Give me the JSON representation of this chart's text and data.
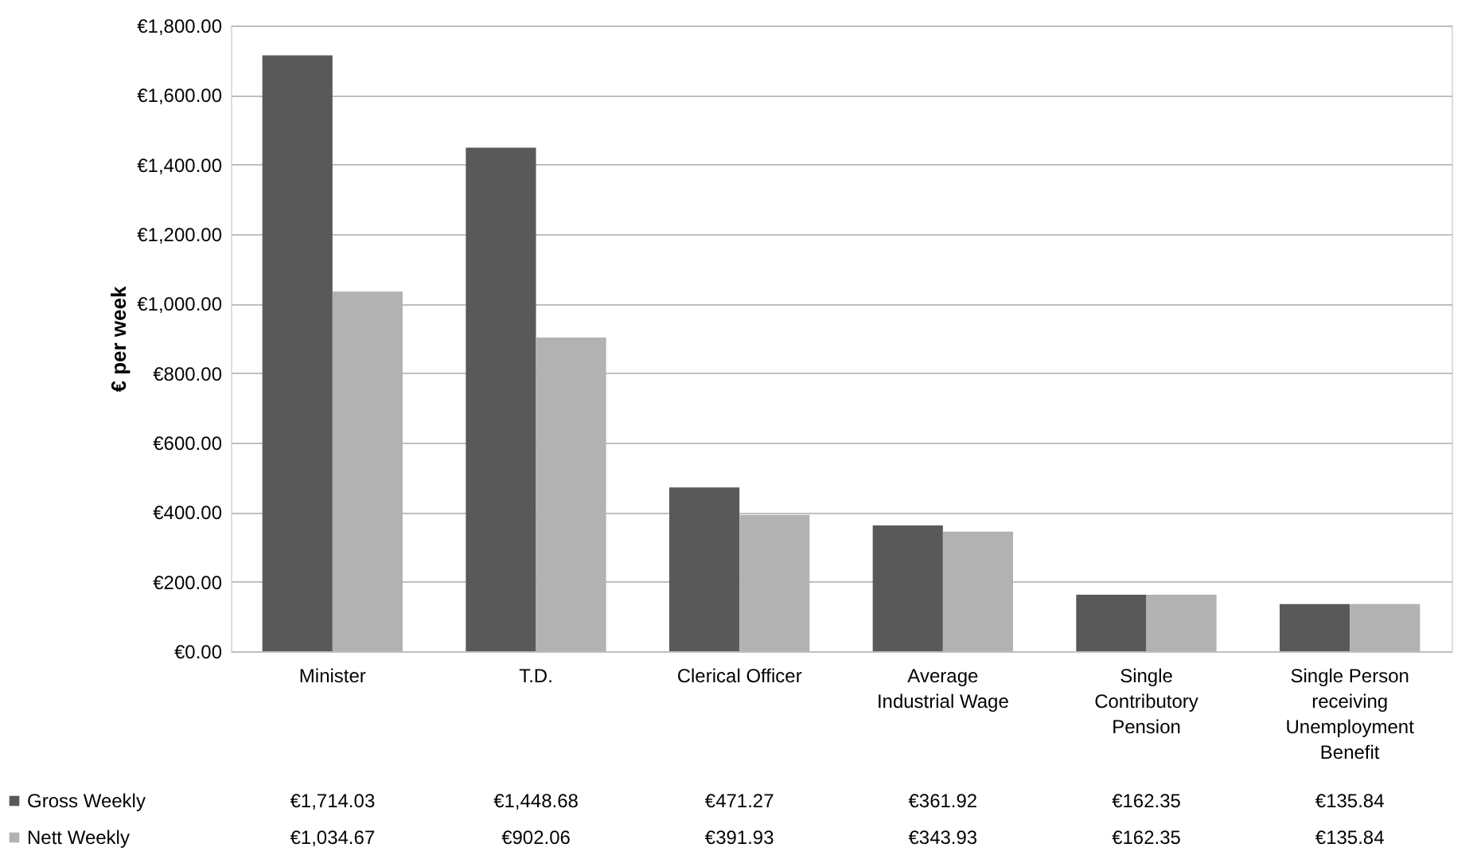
{
  "chart_data": {
    "type": "bar",
    "ylabel": "€ per week",
    "categories": [
      "Minister",
      "T.D.",
      "Clerical Officer",
      "Average Industrial Wage",
      "Single Contributory Pension",
      "Single Person receiving Unemployment Benefit"
    ],
    "series": [
      {
        "name": "Gross Weekly",
        "color": "#595959",
        "values": [
          1714.03,
          1448.68,
          471.27,
          361.92,
          162.35,
          135.84
        ],
        "value_labels": [
          "€1,714.03",
          "€1,448.68",
          "€471.27",
          "€361.92",
          "€162.35",
          "€135.84"
        ]
      },
      {
        "name": "Nett Weekly",
        "color": "#b2b2b2",
        "values": [
          1034.67,
          902.06,
          391.93,
          343.93,
          162.35,
          135.84
        ],
        "value_labels": [
          "€1,034.67",
          "€902.06",
          "€391.93",
          "€343.93",
          "€162.35",
          "€135.84"
        ]
      }
    ],
    "ylim": [
      0,
      1800
    ],
    "yticks": [
      {
        "value": 0,
        "label": "€0.00"
      },
      {
        "value": 200,
        "label": "€200.00"
      },
      {
        "value": 400,
        "label": "€400.00"
      },
      {
        "value": 600,
        "label": "€600.00"
      },
      {
        "value": 800,
        "label": "€800.00"
      },
      {
        "value": 1000,
        "label": "€1,000.00"
      },
      {
        "value": 1200,
        "label": "€1,200.00"
      },
      {
        "value": 1400,
        "label": "€1,400.00"
      },
      {
        "value": 1600,
        "label": "€1,600.00"
      },
      {
        "value": 1800,
        "label": "€1,800.00"
      }
    ],
    "grid": "y",
    "legend": "bottom left"
  }
}
